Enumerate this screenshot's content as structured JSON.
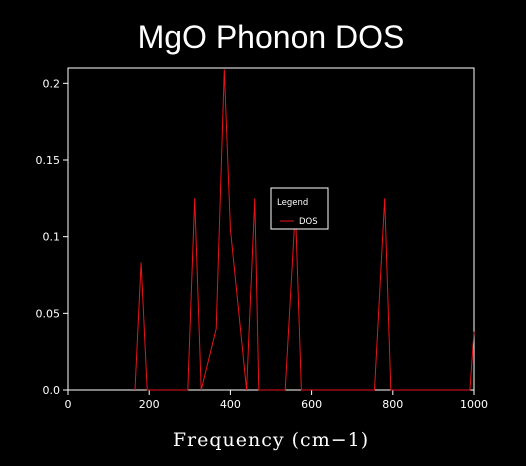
{
  "chart_data": {
    "type": "line",
    "title": "MgO Phonon DOS",
    "xlabel": "Frequency (cm−1)",
    "ylabel": "",
    "xlim": [
      0,
      1000
    ],
    "ylim": [
      0,
      0.21
    ],
    "xticks": [
      0,
      200,
      400,
      600,
      800,
      1000
    ],
    "xtick_labels": [
      "0",
      "200",
      "400",
      "600",
      "800",
      "1000"
    ],
    "yticks": [
      0,
      0.05,
      0.1,
      0.15,
      0.2
    ],
    "ytick_labels": [
      "0.0",
      "0.05",
      "0.1",
      "0.15",
      "0.2"
    ],
    "grid": false,
    "legend": {
      "title": "Legend",
      "position": "center-right",
      "entries": [
        "DOS"
      ]
    },
    "series": [
      {
        "name": "DOS",
        "color": "#e8141a",
        "x": [
          165,
          180,
          195,
          295,
          312,
          328,
          365,
          385,
          400,
          440,
          460,
          470,
          535,
          560,
          575,
          755,
          780,
          795,
          990,
          1000
        ],
        "y": [
          0,
          0.083,
          0,
          0,
          0.125,
          0,
          0.04,
          0.209,
          0.105,
          0,
          0.125,
          0,
          0,
          0.118,
          0,
          0,
          0.125,
          0,
          0,
          0.038
        ]
      }
    ]
  }
}
